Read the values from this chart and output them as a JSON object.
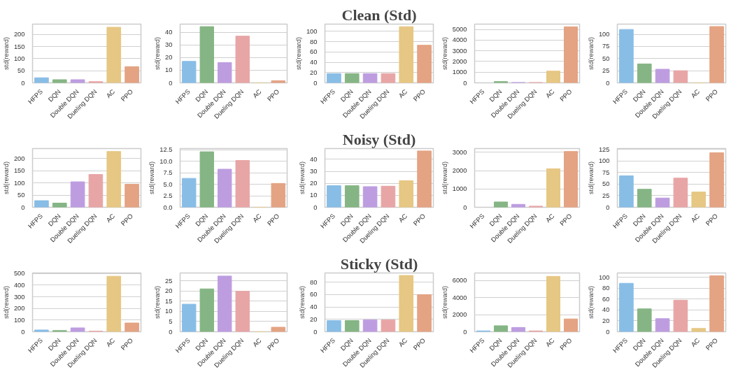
{
  "chart_data": [
    {
      "type": "bar",
      "ylabel": "std(reward)",
      "categories": [
        "HFPS",
        "DQN",
        "Double DQN",
        "Dueling DQN",
        "AC",
        "PPO"
      ],
      "values": [
        21,
        13,
        13,
        5,
        230,
        67
      ],
      "colors": [
        "#88bde6",
        "#85b584",
        "#bd9de0",
        "#e8a5a5",
        "#e6c783",
        "#e4a383"
      ],
      "ylim": [
        0,
        243
      ],
      "yticks": [
        0,
        50,
        100,
        150,
        200
      ],
      "grid": "y"
    },
    {
      "type": "bar",
      "ylabel": "std(reward)",
      "categories": [
        "HFPS",
        "DQN",
        "Double DQN",
        "Dueling DQN",
        "AC",
        "PPO"
      ],
      "values": [
        17,
        44.5,
        16,
        37,
        0,
        1.7
      ],
      "colors": [
        "#88bde6",
        "#85b584",
        "#bd9de0",
        "#e8a5a5",
        "#e6c783",
        "#e4a383"
      ],
      "ylim": [
        0,
        46.5
      ],
      "yticks": [
        0,
        10,
        20,
        30,
        40
      ],
      "grid": "y"
    },
    {
      "type": "bar",
      "title": "Clean (Std)",
      "ylabel": "std(reward)",
      "categories": [
        "HFPS",
        "DQN",
        "Double DQN",
        "Dueling DQN",
        "AC",
        "PPO"
      ],
      "values": [
        18,
        18,
        18,
        18,
        109,
        73
      ],
      "colors": [
        "#88bde6",
        "#85b584",
        "#bd9de0",
        "#e8a5a5",
        "#e6c783",
        "#e4a383"
      ],
      "ylim": [
        0,
        114
      ],
      "yticks": [
        0,
        20,
        40,
        60,
        80,
        100
      ],
      "grid": "y"
    },
    {
      "type": "bar",
      "ylabel": "std(reward)",
      "categories": [
        "HFPS",
        "DQN",
        "Double DQN",
        "Dueling DQN",
        "AC",
        "PPO"
      ],
      "values": [
        null,
        120,
        30,
        30,
        1100,
        5250
      ],
      "colors": [
        "#88bde6",
        "#85b584",
        "#bd9de0",
        "#e8a5a5",
        "#e6c783",
        "#e4a383"
      ],
      "ylim": [
        0,
        5500
      ],
      "yticks": [
        0,
        1000,
        2000,
        3000,
        4000,
        5000
      ],
      "grid": "y"
    },
    {
      "type": "bar",
      "ylabel": "std(reward)",
      "categories": [
        "HFPS",
        "DQN",
        "Double DQN",
        "Dueling DQN",
        "AC",
        "PPO"
      ],
      "values": [
        110,
        39,
        28,
        25,
        0,
        116
      ],
      "colors": [
        "#88bde6",
        "#85b584",
        "#bd9de0",
        "#e8a5a5",
        "#e6c783",
        "#e4a383"
      ],
      "ylim": [
        0,
        121
      ],
      "yticks": [
        0,
        25,
        50,
        75,
        100
      ],
      "grid": "y"
    },
    {
      "type": "bar",
      "ylabel": "std(reward)",
      "categories": [
        "HFPS",
        "DQN",
        "Double DQN",
        "Dueling DQN",
        "AC",
        "PPO"
      ],
      "values": [
        27,
        17,
        104,
        134,
        228,
        94
      ],
      "colors": [
        "#88bde6",
        "#85b584",
        "#bd9de0",
        "#e8a5a5",
        "#e6c783",
        "#e4a383"
      ],
      "ylim": [
        0,
        240
      ],
      "yticks": [
        0,
        50,
        100,
        150,
        200
      ],
      "grid": "y"
    },
    {
      "type": "bar",
      "ylabel": "std(reward)",
      "categories": [
        "HFPS",
        "DQN",
        "Double DQN",
        "Dueling DQN",
        "AC",
        "PPO"
      ],
      "values": [
        6.3,
        12.1,
        8.3,
        10.2,
        0,
        5.2
      ],
      "colors": [
        "#88bde6",
        "#85b584",
        "#bd9de0",
        "#e8a5a5",
        "#e6c783",
        "#e4a383"
      ],
      "ylim": [
        0,
        12.8
      ],
      "yticks": [
        {
          "value": 0,
          "label": "0.0"
        },
        {
          "value": 2.5,
          "label": "2.5"
        },
        {
          "value": 5,
          "label": "5.0"
        },
        {
          "value": 7.5,
          "label": "7.5"
        },
        {
          "value": 10,
          "label": "10.0"
        },
        {
          "value": 12.5,
          "label": "12.5"
        }
      ],
      "grid": "y"
    },
    {
      "type": "bar",
      "title": "Noisy (Std)",
      "ylabel": "std(reward)",
      "categories": [
        "HFPS",
        "DQN",
        "Double DQN",
        "Dueling DQN",
        "AC",
        "PPO"
      ],
      "values": [
        18,
        18,
        17.2,
        17.6,
        22.2,
        47
      ],
      "colors": [
        "#88bde6",
        "#85b584",
        "#bd9de0",
        "#e8a5a5",
        "#e6c783",
        "#e4a383"
      ],
      "ylim": [
        0,
        49
      ],
      "yticks": [
        0,
        10,
        20,
        30,
        40
      ],
      "grid": "y"
    },
    {
      "type": "bar",
      "ylabel": "std(reward)",
      "categories": [
        "HFPS",
        "DQN",
        "Double DQN",
        "Dueling DQN",
        "AC",
        "PPO"
      ],
      "values": [
        null,
        290,
        160,
        60,
        2100,
        3040
      ],
      "colors": [
        "#88bde6",
        "#85b584",
        "#bd9de0",
        "#e8a5a5",
        "#e6c783",
        "#e4a383"
      ],
      "ylim": [
        0,
        3200
      ],
      "yticks": [
        0,
        1000,
        2000,
        3000
      ],
      "grid": "y"
    },
    {
      "type": "bar",
      "ylabel": "std(reward)",
      "categories": [
        "HFPS",
        "DQN",
        "Double DQN",
        "Dueling DQN",
        "AC",
        "PPO"
      ],
      "values": [
        68,
        39,
        20,
        63,
        33,
        118
      ],
      "colors": [
        "#88bde6",
        "#85b584",
        "#bd9de0",
        "#e8a5a5",
        "#e6c783",
        "#e4a383"
      ],
      "ylim": [
        0,
        127
      ],
      "yticks": [
        0,
        25,
        50,
        75,
        100,
        125
      ],
      "grid": "y"
    },
    {
      "type": "bar",
      "ylabel": "std(reward)",
      "categories": [
        "HFPS",
        "DQN",
        "Double DQN",
        "Dueling DQN",
        "AC",
        "PPO"
      ],
      "values": [
        15,
        10,
        33,
        4,
        477,
        75
      ],
      "colors": [
        "#88bde6",
        "#85b584",
        "#bd9de0",
        "#e8a5a5",
        "#e6c783",
        "#e4a383"
      ],
      "ylim": [
        0,
        505
      ],
      "yticks": [
        0,
        100,
        200,
        300,
        400,
        500
      ],
      "grid": "y"
    },
    {
      "type": "bar",
      "ylabel": "std(reward)",
      "categories": [
        "HFPS",
        "DQN",
        "Double DQN",
        "Dueling DQN",
        "AC",
        "PPO"
      ],
      "values": [
        13.5,
        21,
        27.3,
        19.8,
        0,
        2.2
      ],
      "colors": [
        "#88bde6",
        "#85b584",
        "#bd9de0",
        "#e8a5a5",
        "#e6c783",
        "#e4a383"
      ],
      "ylim": [
        0,
        28.8
      ],
      "yticks": [
        0,
        5,
        10,
        15,
        20,
        25
      ],
      "grid": "y"
    },
    {
      "type": "bar",
      "title": "Sticky (Std)",
      "ylabel": "std(reward)",
      "categories": [
        "HFPS",
        "DQN",
        "Double DQN",
        "Dueling DQN",
        "AC",
        "PPO"
      ],
      "values": [
        18,
        18,
        19,
        19,
        91,
        60
      ],
      "colors": [
        "#88bde6",
        "#85b584",
        "#bd9de0",
        "#e8a5a5",
        "#e6c783",
        "#e4a383"
      ],
      "ylim": [
        0,
        95
      ],
      "yticks": [
        0,
        20,
        40,
        60,
        80
      ],
      "grid": "y"
    },
    {
      "type": "bar",
      "ylabel": "std(reward)",
      "categories": [
        "HFPS",
        "DQN",
        "Double DQN",
        "Dueling DQN",
        "AC",
        "PPO"
      ],
      "values": [
        100,
        700,
        500,
        100,
        6500,
        1500
      ],
      "colors": [
        "#88bde6",
        "#85b584",
        "#bd9de0",
        "#e8a5a5",
        "#e6c783",
        "#e4a383"
      ],
      "ylim": [
        0,
        6900
      ],
      "yticks": [
        0,
        2000,
        4000,
        6000
      ],
      "grid": "y"
    },
    {
      "type": "bar",
      "ylabel": "std(reward)",
      "categories": [
        "HFPS",
        "DQN",
        "Double DQN",
        "Dueling DQN",
        "AC",
        "PPO"
      ],
      "values": [
        89,
        42,
        24,
        58,
        6,
        103
      ],
      "colors": [
        "#88bde6",
        "#85b584",
        "#bd9de0",
        "#e8a5a5",
        "#e6c783",
        "#e4a383"
      ],
      "ylim": [
        0,
        108
      ],
      "yticks": [
        0,
        20,
        40,
        60,
        80,
        100
      ],
      "grid": "y"
    }
  ]
}
